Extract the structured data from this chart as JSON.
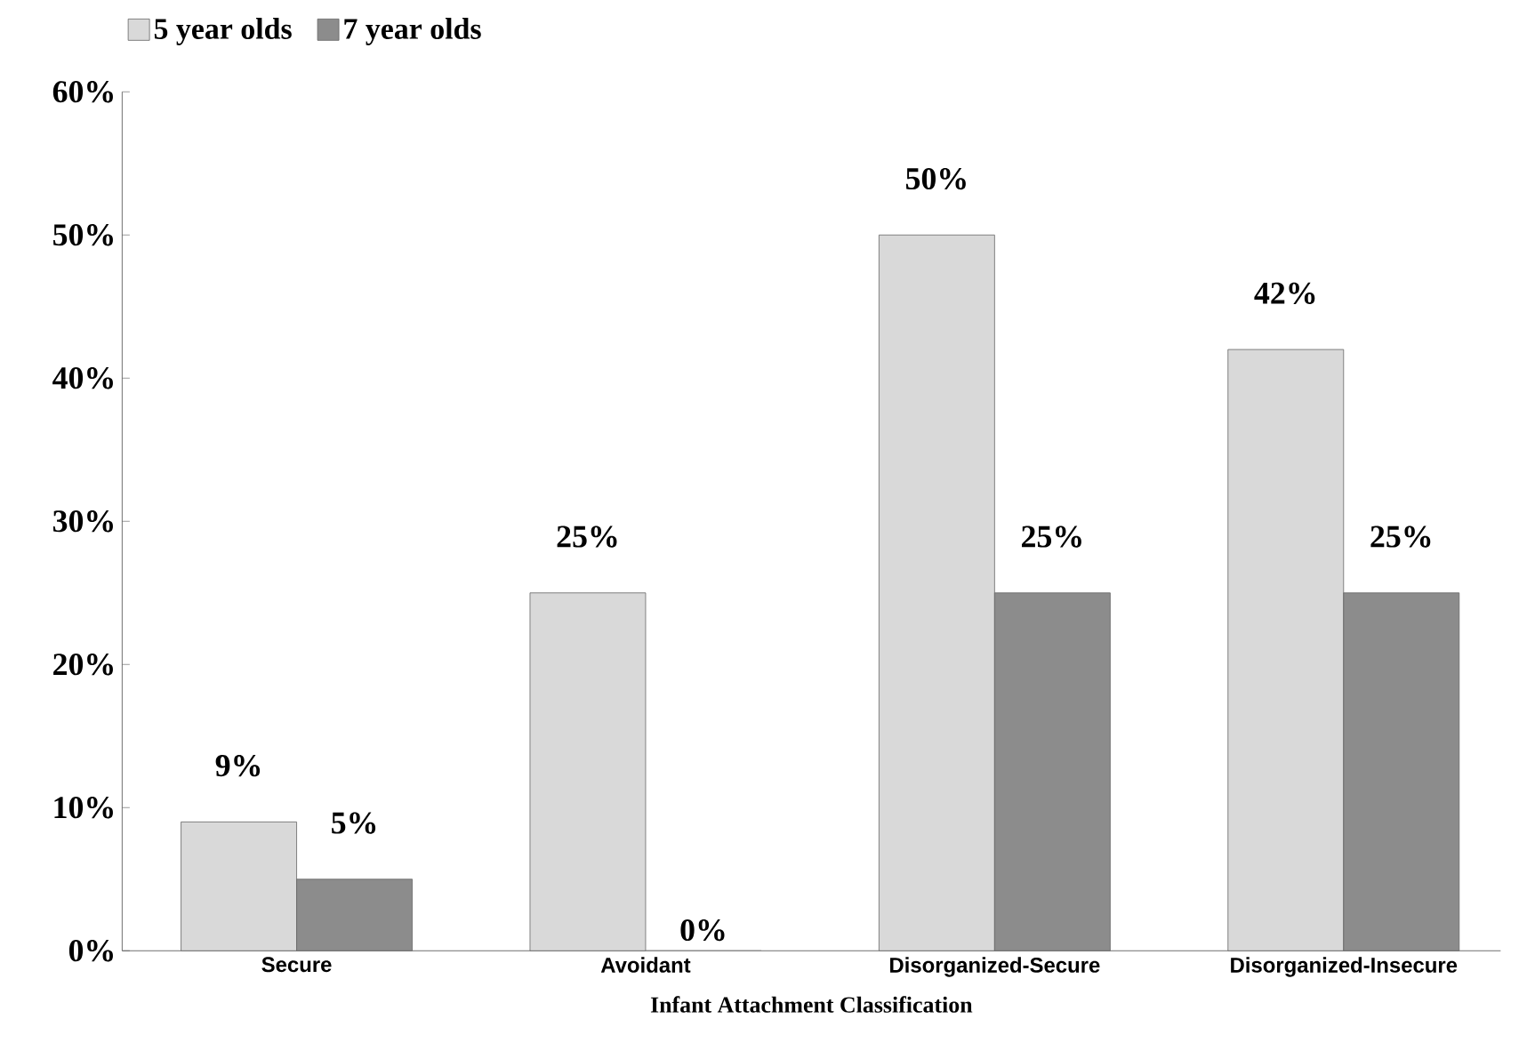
{
  "chart_data": {
    "type": "bar",
    "xlabel": "Infant Attachment Classification",
    "categories": [
      "Secure",
      "Avoidant",
      "Disorganized-Secure",
      "Disorganized-Insecure"
    ],
    "series": [
      {
        "name": "5 year olds",
        "color": "#d9d9d9",
        "values": [
          9,
          25,
          50,
          42
        ],
        "value_labels": [
          "9%",
          "25%",
          "50%",
          "42%"
        ]
      },
      {
        "name": "7 year olds",
        "color": "#8c8c8c",
        "values": [
          5,
          0,
          25,
          25
        ],
        "value_labels": [
          "5%",
          "0%",
          "25%",
          "25%"
        ]
      }
    ],
    "ylim": [
      0,
      60
    ],
    "yticks": [
      {
        "value": 0,
        "label": "0%"
      },
      {
        "value": 10,
        "label": "10%"
      },
      {
        "value": 20,
        "label": "20%"
      },
      {
        "value": 30,
        "label": "30%"
      },
      {
        "value": 40,
        "label": "40%"
      },
      {
        "value": 50,
        "label": "50%"
      },
      {
        "value": 60,
        "label": "60%"
      }
    ],
    "grid": false,
    "legend": "top left"
  }
}
